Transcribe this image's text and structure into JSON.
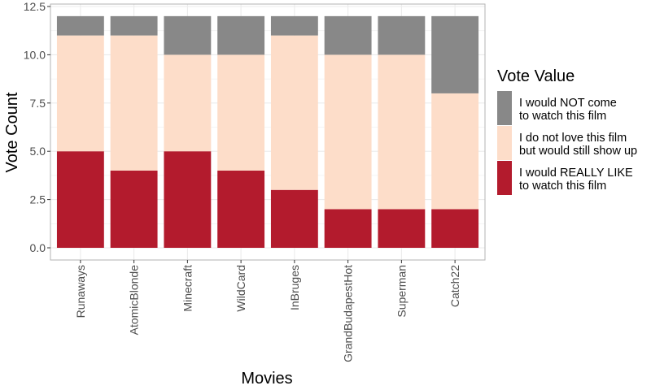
{
  "chart_data": {
    "type": "bar",
    "stacked": true,
    "categories": [
      "Runaways",
      "AtomicBlonde",
      "Minecraft",
      "WildCard",
      "InBruges",
      "GrandBudapestHot",
      "Superman",
      "Catch22"
    ],
    "series": [
      {
        "name": "I would REALLY LIKE to watch this film",
        "color": "#b31b2d",
        "values": [
          5,
          4,
          5,
          4,
          3,
          2,
          2,
          2
        ]
      },
      {
        "name": "I do not love this film but would still show up",
        "color": "#fdddc9",
        "values": [
          6,
          7,
          5,
          6,
          8,
          8,
          8,
          6
        ]
      },
      {
        "name": "I would NOT come to watch this film",
        "color": "#888888",
        "values": [
          1,
          1,
          2,
          2,
          1,
          2,
          2,
          4
        ]
      }
    ],
    "xlabel": "Movies",
    "ylabel": "Vote Count",
    "ylim": [
      0,
      12.5
    ],
    "yticks": [
      "0.0",
      "2.5",
      "5.0",
      "7.5",
      "10.0",
      "12.5"
    ],
    "grid": true,
    "legend": {
      "title": "Vote Value",
      "position": "right",
      "entries": [
        {
          "lines": [
            "I would NOT come",
            "to watch this film"
          ],
          "color": "#888888"
        },
        {
          "lines": [
            "I do not love this film",
            "but would still show up"
          ],
          "color": "#fdddc9"
        },
        {
          "lines": [
            "I would REALLY LIKE",
            "to watch this film"
          ],
          "color": "#b31b2d"
        }
      ]
    }
  }
}
